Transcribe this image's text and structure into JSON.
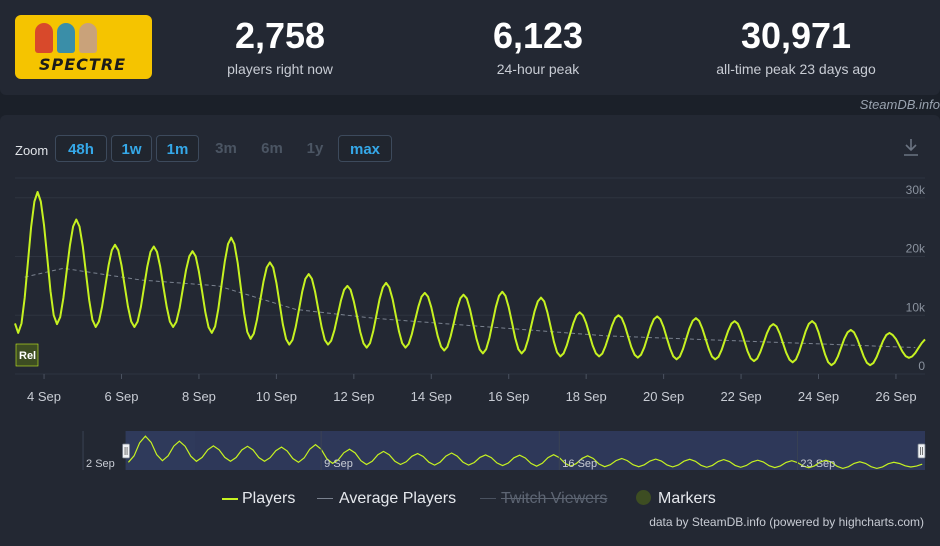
{
  "stats": [
    {
      "value": "2,758",
      "label": "players right now"
    },
    {
      "value": "6,123",
      "label": "24-hour peak"
    },
    {
      "value": "30,971",
      "label": "all-time peak 23 days ago"
    }
  ],
  "game": {
    "logo_text": "SPECTRE"
  },
  "source_credit": "SteamDB.info",
  "zoom": {
    "label": "Zoom",
    "buttons": [
      {
        "label": "48h",
        "enabled": true
      },
      {
        "label": "1w",
        "enabled": true
      },
      {
        "label": "1m",
        "enabled": true
      },
      {
        "label": "3m",
        "enabled": false
      },
      {
        "label": "6m",
        "enabled": false
      },
      {
        "label": "1y",
        "enabled": false
      },
      {
        "label": "max",
        "enabled": true
      }
    ]
  },
  "marker_label": "Rel",
  "legend": {
    "players": "Players",
    "average": "Average Players",
    "twitch": "Twitch Viewers",
    "markers": "Markers"
  },
  "footer_credit": "data by SteamDB.info (powered by highcharts.com)",
  "colors": {
    "players": "#c6f221",
    "average": "#7a828f",
    "accent": "#35a8e8",
    "background": "#1b2029",
    "panel": "#232833"
  },
  "chart_data": {
    "type": "line",
    "x_unit": "date",
    "xlim": [
      "2023-09-03",
      "2023-09-26"
    ],
    "x_ticks": [
      "4 Sep",
      "6 Sep",
      "8 Sep",
      "10 Sep",
      "12 Sep",
      "14 Sep",
      "16 Sep",
      "18 Sep",
      "20 Sep",
      "22 Sep",
      "24 Sep",
      "26 Sep"
    ],
    "ylim": [
      0,
      32000
    ],
    "y_ticks": [
      "0",
      "10k",
      "20k",
      "30k"
    ],
    "grid": true,
    "marker": {
      "date": "2023-09-03",
      "label": "Rel"
    },
    "series": [
      {
        "name": "Players",
        "daily": [
          {
            "date": "2023-09-03",
            "peak": 30971,
            "low": 7000
          },
          {
            "date": "2023-09-04",
            "peak": 26300,
            "low": 8500
          },
          {
            "date": "2023-09-05",
            "peak": 22000,
            "low": 8000
          },
          {
            "date": "2023-09-06",
            "peak": 21700,
            "low": 8000
          },
          {
            "date": "2023-09-07",
            "peak": 20900,
            "low": 8000
          },
          {
            "date": "2023-09-08",
            "peak": 23200,
            "low": 7000
          },
          {
            "date": "2023-09-09",
            "peak": 19000,
            "low": 6000
          },
          {
            "date": "2023-09-10",
            "peak": 17000,
            "low": 5000
          },
          {
            "date": "2023-09-11",
            "peak": 15000,
            "low": 5000
          },
          {
            "date": "2023-09-12",
            "peak": 15500,
            "low": 4500
          },
          {
            "date": "2023-09-13",
            "peak": 13800,
            "low": 4500
          },
          {
            "date": "2023-09-14",
            "peak": 13500,
            "low": 4000
          },
          {
            "date": "2023-09-15",
            "peak": 14000,
            "low": 3500
          },
          {
            "date": "2023-09-16",
            "peak": 13000,
            "low": 3500
          },
          {
            "date": "2023-09-17",
            "peak": 10500,
            "low": 3000
          },
          {
            "date": "2023-09-18",
            "peak": 10000,
            "low": 3000
          },
          {
            "date": "2023-09-19",
            "peak": 9800,
            "low": 2800
          },
          {
            "date": "2023-09-20",
            "peak": 9500,
            "low": 2500
          },
          {
            "date": "2023-09-21",
            "peak": 9000,
            "low": 2500
          },
          {
            "date": "2023-09-22",
            "peak": 8500,
            "low": 2200
          },
          {
            "date": "2023-09-23",
            "peak": 9000,
            "low": 2000
          },
          {
            "date": "2023-09-24",
            "peak": 7500,
            "low": 1500
          },
          {
            "date": "2023-09-25",
            "peak": 7000,
            "low": 1500
          },
          {
            "date": "2023-09-26",
            "peak": 6123,
            "low": 2758
          }
        ]
      },
      {
        "name": "Average Players",
        "daily": [
          {
            "date": "2023-09-03",
            "value": 16500
          },
          {
            "date": "2023-09-04",
            "value": 18000
          },
          {
            "date": "2023-09-06",
            "value": 16000
          },
          {
            "date": "2023-09-08",
            "value": 15000
          },
          {
            "date": "2023-09-10",
            "value": 11000
          },
          {
            "date": "2023-09-12",
            "value": 9500
          },
          {
            "date": "2023-09-14",
            "value": 8500
          },
          {
            "date": "2023-09-16",
            "value": 7500
          },
          {
            "date": "2023-09-18",
            "value": 6500
          },
          {
            "date": "2023-09-20",
            "value": 6000
          },
          {
            "date": "2023-09-22",
            "value": 5500
          },
          {
            "date": "2023-09-24",
            "value": 5000
          },
          {
            "date": "2023-09-26",
            "value": 4500
          }
        ]
      }
    ],
    "navigator": {
      "xlim": [
        "2023-08-31",
        "2023-09-26"
      ],
      "labels": [
        "2 Sep",
        "9 Sep",
        "16 Sep",
        "23 Sep"
      ],
      "selected": [
        "2023-09-03",
        "2023-09-26"
      ]
    }
  }
}
